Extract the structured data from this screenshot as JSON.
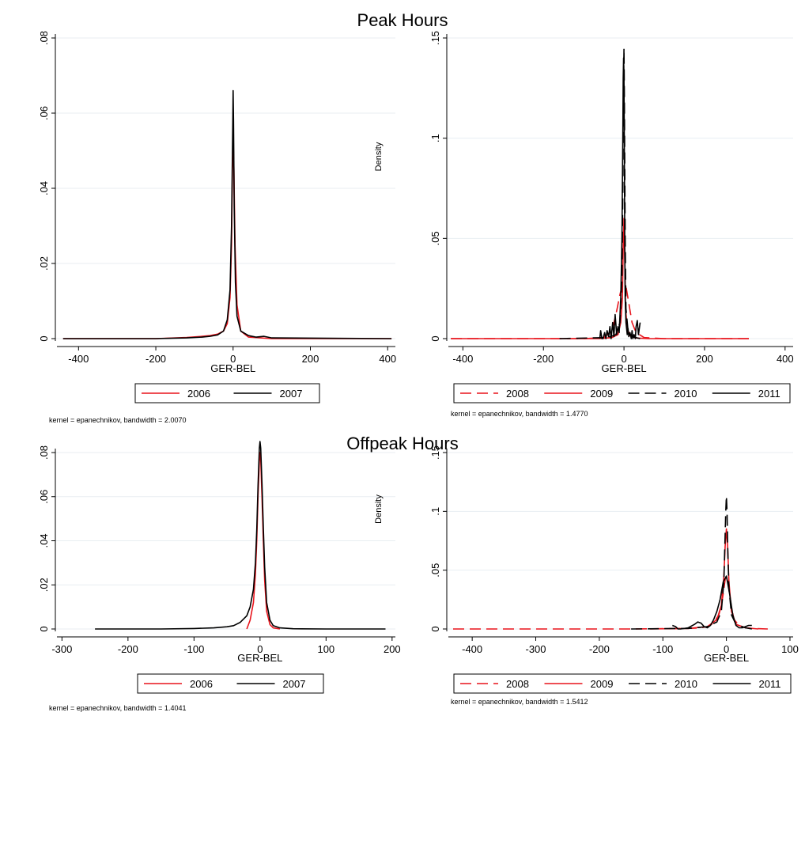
{
  "sections": [
    {
      "title": "Peak Hours"
    },
    {
      "title": "Offpeak Hours"
    }
  ],
  "chart_data": [
    {
      "type": "line",
      "section": "Peak Hours",
      "xlabel": "GER-BEL",
      "ylabel": "",
      "xlim": [
        -460,
        420
      ],
      "ylim": [
        0,
        0.08
      ],
      "xticks": [
        -400,
        -200,
        0,
        200,
        400
      ],
      "xtick_labels": [
        "-400",
        "-200",
        "0",
        "200",
        "400"
      ],
      "yticks": [
        0,
        0.02,
        0.04,
        0.06,
        0.08
      ],
      "ytick_labels": [
        "0",
        ".02",
        ".04",
        ".06",
        ".08"
      ],
      "grid": true,
      "legend_position": "bottom",
      "note": "kernel = epanechnikov, bandwidth = 2.0070",
      "series": [
        {
          "name": "2006",
          "color": "#e8141c",
          "dash": "solid",
          "x": [
            -440,
            -200,
            -120,
            -80,
            -60,
            -40,
            -25,
            -15,
            -8,
            -4,
            -2,
            0,
            2,
            5,
            10,
            20,
            40,
            100,
            410
          ],
          "y": [
            0,
            0,
            0.0003,
            0.0006,
            0.0008,
            0.0012,
            0.002,
            0.004,
            0.011,
            0.025,
            0.042,
            0.055,
            0.045,
            0.025,
            0.009,
            0.002,
            0.0004,
            0,
            0
          ]
        },
        {
          "name": "2007",
          "color": "#000000",
          "dash": "solid",
          "x": [
            -440,
            -200,
            -120,
            -80,
            -60,
            -40,
            -25,
            -15,
            -8,
            -4,
            -1,
            0,
            1,
            3,
            6,
            10,
            20,
            40,
            60,
            80,
            100,
            410
          ],
          "y": [
            0,
            0,
            0.0002,
            0.0004,
            0.0006,
            0.001,
            0.002,
            0.005,
            0.013,
            0.03,
            0.056,
            0.066,
            0.058,
            0.035,
            0.015,
            0.006,
            0.002,
            0.0008,
            0.0004,
            0.0006,
            0.0002,
            0
          ]
        }
      ]
    },
    {
      "type": "line",
      "section": "Peak Hours",
      "xlabel": "GER-BEL",
      "ylabel": "Density",
      "xlim": [
        -440,
        420
      ],
      "ylim": [
        0,
        0.15
      ],
      "xticks": [
        -400,
        -200,
        0,
        200,
        400
      ],
      "xtick_labels": [
        "-400",
        "-200",
        "0",
        "200",
        "400"
      ],
      "yticks": [
        0,
        0.05,
        0.1,
        0.15
      ],
      "ytick_labels": [
        "0",
        ".05",
        ".1",
        ".15"
      ],
      "grid": true,
      "legend_position": "bottom",
      "note": "kernel = epanechnikov, bandwidth = 1.4770",
      "series": [
        {
          "name": "2008",
          "color": "#e8141c",
          "dash": "long",
          "x": [
            -430,
            -100,
            -50,
            -30,
            -20,
            -10,
            -5,
            0,
            5,
            10,
            20,
            30,
            50,
            100,
            310
          ],
          "y": [
            0,
            0,
            0.0005,
            0.004,
            0.012,
            0.022,
            0.026,
            0.027,
            0.026,
            0.02,
            0.008,
            0.003,
            0.0005,
            0,
            0
          ]
        },
        {
          "name": "2009",
          "color": "#e8141c",
          "dash": "solid",
          "x": [
            -430,
            -60,
            -30,
            -15,
            -8,
            -4,
            -2,
            0,
            2,
            4,
            8,
            15,
            30,
            60,
            310
          ],
          "y": [
            0,
            0,
            0.0005,
            0.002,
            0.008,
            0.02,
            0.045,
            0.06,
            0.04,
            0.015,
            0.005,
            0.0015,
            0.0003,
            0,
            0
          ]
        },
        {
          "name": "2010",
          "color": "#000000",
          "dash": "long",
          "x": [
            -160,
            -40,
            -20,
            -10,
            -5,
            -3,
            -1,
            0,
            1,
            3,
            5,
            10,
            20,
            40
          ],
          "y": [
            0,
            0.0005,
            0.002,
            0.008,
            0.03,
            0.07,
            0.13,
            0.145,
            0.12,
            0.05,
            0.015,
            0.004,
            0.001,
            0
          ]
        },
        {
          "name": "2011",
          "color": "#000000",
          "dash": "solid",
          "x": [
            -60,
            -58,
            -55,
            -52,
            -48,
            -45,
            -42,
            -38,
            -35,
            -32,
            -28,
            -25,
            -22,
            -18,
            -15,
            -12,
            -8,
            -5,
            -3,
            -2,
            -1,
            0,
            1,
            2,
            3,
            5,
            8,
            10,
            12,
            15,
            18,
            20,
            22,
            25,
            28,
            30,
            33,
            36,
            40
          ],
          "y": [
            0,
            0.004,
            0,
            0,
            0.003,
            0,
            0.004,
            0.001,
            0.006,
            0,
            0.008,
            0.001,
            0.012,
            0.002,
            0.006,
            0.003,
            0.02,
            0.05,
            0.1,
            0.13,
            0.14,
            0.13,
            0.09,
            0.045,
            0.02,
            0.008,
            0.002,
            0.005,
            0.001,
            0.003,
            0,
            0.004,
            0,
            0.002,
            0,
            0.006,
            0.009,
            0.002,
            0.008
          ]
        }
      ]
    },
    {
      "type": "line",
      "section": "Offpeak Hours",
      "xlabel": "GER-BEL",
      "ylabel": "",
      "xlim": [
        -310,
        205
      ],
      "ylim": [
        0,
        0.08
      ],
      "xticks": [
        -300,
        -200,
        -100,
        0,
        100,
        200
      ],
      "xtick_labels": [
        "-300",
        "-200",
        "-100",
        "0",
        "100",
        "200"
      ],
      "yticks": [
        0,
        0.02,
        0.04,
        0.06,
        0.08
      ],
      "ytick_labels": [
        "0",
        ".02",
        ".04",
        ".06",
        ".08"
      ],
      "grid": true,
      "legend_position": "bottom",
      "note": "kernel = epanechnikov, bandwidth = 1.4041",
      "series": [
        {
          "name": "2006",
          "color": "#e8141c",
          "dash": "solid",
          "x": [
            -20,
            -15,
            -10,
            -7,
            -5,
            -3,
            -1,
            0,
            1,
            3,
            5,
            7,
            10,
            15,
            20,
            30
          ],
          "y": [
            0,
            0.004,
            0.012,
            0.025,
            0.04,
            0.06,
            0.076,
            0.08,
            0.077,
            0.06,
            0.04,
            0.022,
            0.008,
            0.002,
            0.0005,
            0
          ]
        },
        {
          "name": "2007",
          "color": "#000000",
          "dash": "solid",
          "x": [
            -250,
            -150,
            -100,
            -70,
            -50,
            -40,
            -30,
            -20,
            -15,
            -10,
            -7,
            -5,
            -3,
            -1,
            0,
            1,
            3,
            5,
            7,
            10,
            15,
            20,
            30,
            50,
            100,
            190
          ],
          "y": [
            0,
            0,
            0.0002,
            0.0005,
            0.001,
            0.0015,
            0.003,
            0.006,
            0.01,
            0.018,
            0.03,
            0.045,
            0.065,
            0.082,
            0.085,
            0.082,
            0.066,
            0.046,
            0.028,
            0.012,
            0.004,
            0.0015,
            0.0005,
            0.0001,
            0,
            0
          ]
        }
      ]
    },
    {
      "type": "line",
      "section": "Offpeak Hours",
      "xlabel": "GER-BEL",
      "ylabel": "Density",
      "xlim": [
        -440,
        105
      ],
      "ylim": [
        0,
        0.15
      ],
      "xticks": [
        -400,
        -300,
        -200,
        -100,
        0,
        100
      ],
      "xtick_labels": [
        "-400",
        "-300",
        "-200",
        "-100",
        "0",
        "100"
      ],
      "yticks": [
        0,
        0.05,
        0.1,
        0.15
      ],
      "ytick_labels": [
        "0",
        ".05",
        ".1",
        ".15"
      ],
      "grid": true,
      "legend_position": "bottom",
      "note": "kernel = epanechnikov, bandwidth = 1.5412",
      "series": [
        {
          "name": "2008",
          "color": "#e8141c",
          "dash": "long",
          "x": [
            -430,
            -150,
            -60,
            -40,
            -30,
            -20,
            -12,
            -8,
            -5,
            -2,
            0,
            2,
            5,
            8,
            12,
            20,
            30,
            40,
            65
          ],
          "y": [
            0,
            0,
            0.0005,
            0.001,
            0.002,
            0.005,
            0.012,
            0.02,
            0.03,
            0.042,
            0.045,
            0.042,
            0.03,
            0.018,
            0.008,
            0.003,
            0.001,
            0.0005,
            0
          ]
        },
        {
          "name": "2009",
          "color": "#e8141c",
          "dash": "solid",
          "x": [
            -120,
            -60,
            -30,
            -15,
            -8,
            -4,
            -2,
            0,
            2,
            4,
            8,
            15,
            30,
            50
          ],
          "y": [
            0,
            0.0005,
            0.002,
            0.008,
            0.02,
            0.045,
            0.07,
            0.085,
            0.07,
            0.04,
            0.015,
            0.004,
            0.001,
            0
          ]
        },
        {
          "name": "2010",
          "color": "#000000",
          "dash": "long",
          "x": [
            -150,
            -60,
            -30,
            -15,
            -8,
            -4,
            -2,
            -1,
            0,
            1,
            2,
            4,
            8,
            15,
            30,
            40
          ],
          "y": [
            0,
            0.0005,
            0.002,
            0.006,
            0.015,
            0.04,
            0.08,
            0.1,
            0.113,
            0.1,
            0.07,
            0.035,
            0.012,
            0.004,
            0.001,
            0
          ]
        },
        {
          "name": "2011",
          "color": "#000000",
          "dash": "solid",
          "x": [
            -85,
            -80,
            -76,
            -72,
            -60,
            -50,
            -45,
            -40,
            -35,
            -30,
            -25,
            -20,
            -15,
            -10,
            -5,
            0,
            5,
            10,
            15,
            20,
            25,
            30,
            35,
            40
          ],
          "y": [
            0.003,
            0.002,
            0,
            0,
            0.001,
            0.004,
            0.006,
            0.005,
            0.002,
            0.001,
            0.003,
            0.008,
            0.015,
            0.025,
            0.04,
            0.045,
            0.03,
            0.012,
            0.003,
            0.001,
            0.001,
            0.002,
            0.003,
            0.003
          ]
        }
      ]
    }
  ]
}
